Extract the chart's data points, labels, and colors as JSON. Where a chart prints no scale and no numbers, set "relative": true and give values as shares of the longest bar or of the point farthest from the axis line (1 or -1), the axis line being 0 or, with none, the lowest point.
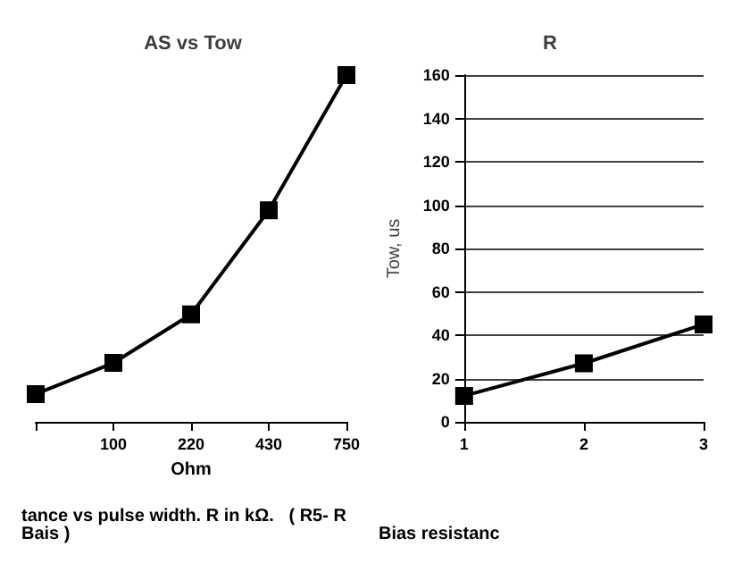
{
  "chart_data": [
    {
      "type": "line",
      "title": "AS vs Tow",
      "xlabel": "Ohm",
      "relative": true,
      "categories": [
        null,
        "100",
        "220",
        "430",
        "750"
      ],
      "series": [
        {
          "color": "#000000",
          "values": [
            0.08,
            0.17,
            0.31,
            0.61,
            1
          ]
        }
      ],
      "marker": "square",
      "line_style": "solid",
      "grid": false,
      "tick_labels": "x",
      "annotations": [
        "tance vs pulse width. R in kΩ.   ( R5- R Bais )"
      ]
    },
    {
      "type": "line",
      "title": "R",
      "ylabel": "Tow, us",
      "categories": [
        "1",
        "2",
        "3"
      ],
      "series": [
        {
          "color": "#000000",
          "values": [
            12,
            27,
            45
          ]
        }
      ],
      "ylim": [
        0,
        160
      ],
      "yticks": [
        0,
        20,
        40,
        60,
        80,
        100,
        120,
        140,
        160
      ],
      "marker": "square",
      "line_style": "solid",
      "grid": "y",
      "annotations": [
        "Bias resistanc"
      ]
    }
  ]
}
